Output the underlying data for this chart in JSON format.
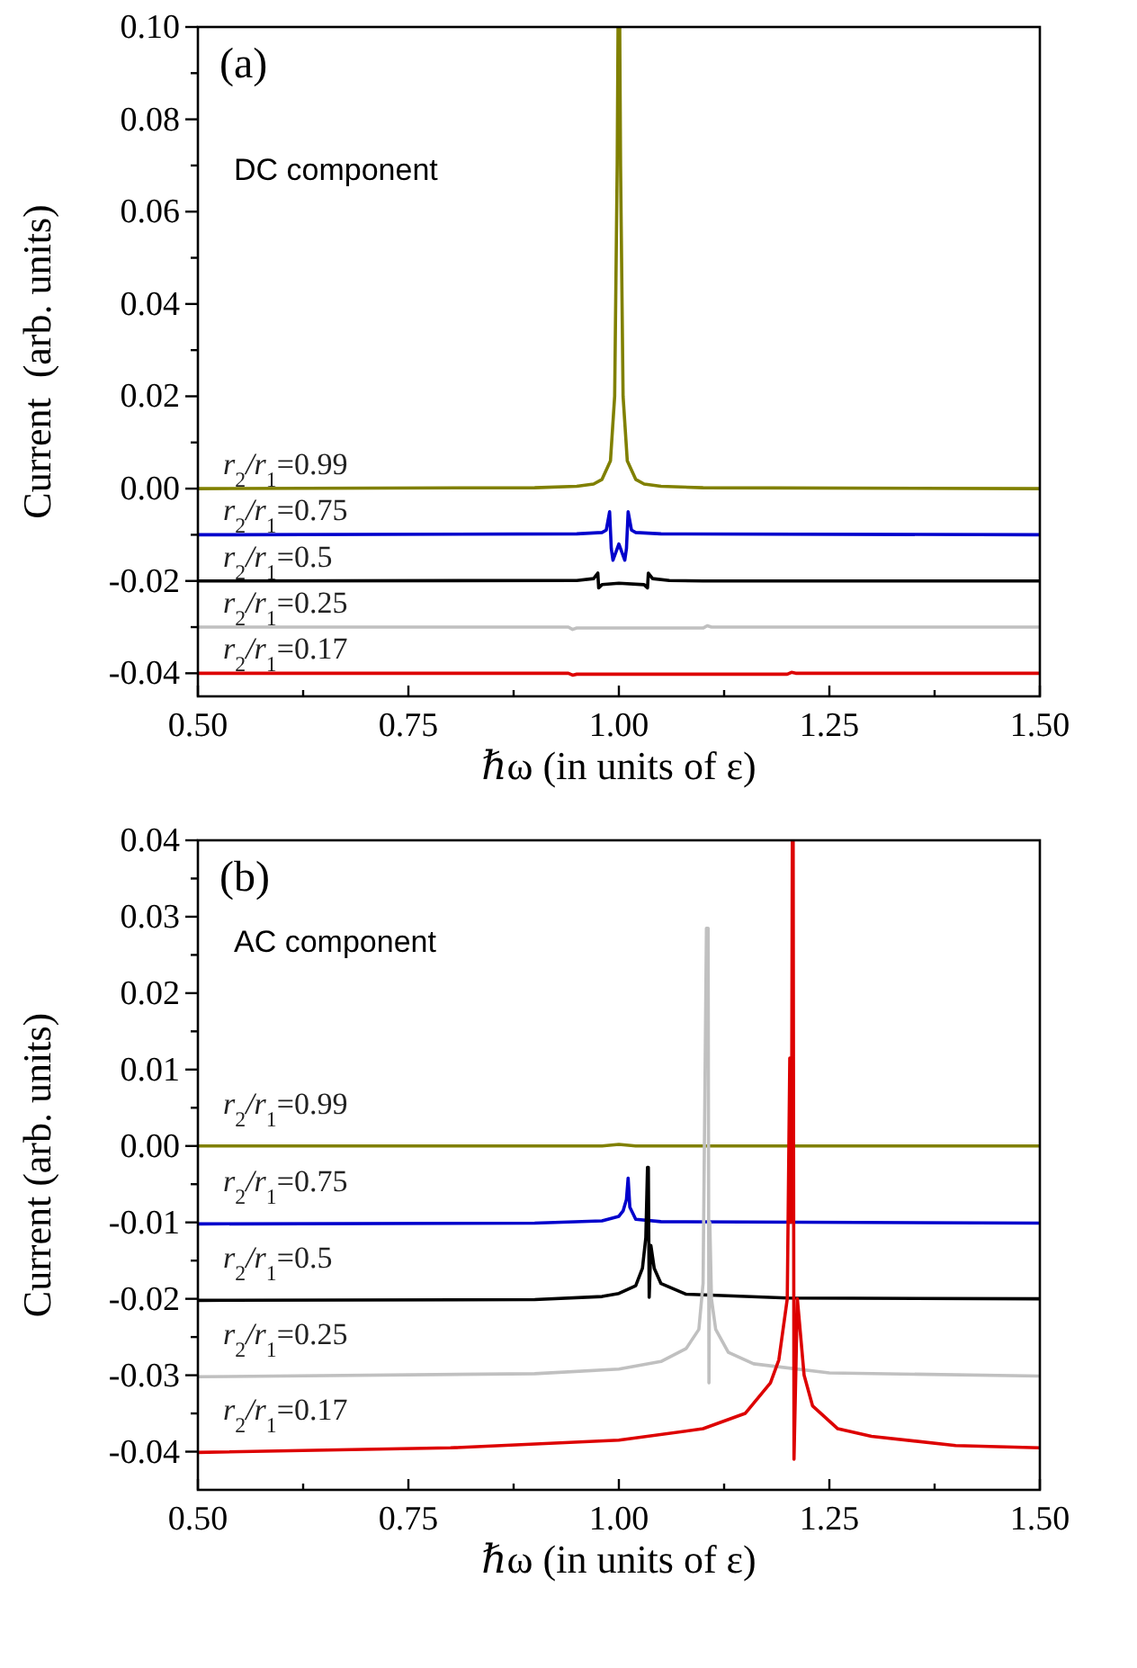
{
  "chart_data": [
    {
      "type": "line",
      "title": "(a)",
      "annotations": [
        "DC component"
      ],
      "xlabel": "ℏω (in units of ε)",
      "ylabel": "Current  (arb. units)",
      "xlim": [
        0.5,
        1.5
      ],
      "ylim": [
        -0.045,
        0.1
      ],
      "xticks": [
        {
          "value": 0.5,
          "label": "0.50"
        },
        {
          "value": 0.625,
          "label": null
        },
        {
          "value": 0.75,
          "label": "0.75"
        },
        {
          "value": 0.875,
          "label": null
        },
        {
          "value": 1.0,
          "label": "1.00"
        },
        {
          "value": 1.125,
          "label": null
        },
        {
          "value": 1.25,
          "label": "1.25"
        },
        {
          "value": 1.375,
          "label": null
        },
        {
          "value": 1.5,
          "label": "1.50"
        }
      ],
      "yticks": [
        {
          "value": -0.04,
          "label": "-0.04"
        },
        {
          "value": -0.03,
          "label": null
        },
        {
          "value": -0.02,
          "label": "-0.02"
        },
        {
          "value": -0.01,
          "label": null
        },
        {
          "value": 0,
          "label": "0.00"
        },
        {
          "value": 0.01,
          "label": null
        },
        {
          "value": 0.02,
          "label": "0.02"
        },
        {
          "value": 0.03,
          "label": null
        },
        {
          "value": 0.04,
          "label": "0.04"
        },
        {
          "value": 0.05,
          "label": null
        },
        {
          "value": 0.06,
          "label": "0.06"
        },
        {
          "value": 0.07,
          "label": null
        },
        {
          "value": 0.08,
          "label": "0.08"
        },
        {
          "value": 0.09,
          "label": null
        },
        {
          "value": 0.1,
          "label": "0.10"
        }
      ],
      "series": [
        {
          "name": "r$_{2}$/r$_{1}$=0.99",
          "color": "#808000",
          "x": [
            0.5,
            0.9,
            0.95,
            0.97,
            0.98,
            0.99,
            0.995,
            0.998,
            0.999,
            1.0,
            1.001,
            1.002,
            1.005,
            1.01,
            1.02,
            1.03,
            1.05,
            1.1,
            1.5
          ],
          "values": [
            0,
            0.0002,
            0.0005,
            0.001,
            0.002,
            0.006,
            0.02,
            0.07,
            0.1,
            0.1,
            0.1,
            0.07,
            0.02,
            0.006,
            0.002,
            0.001,
            0.0005,
            0.0002,
            0
          ]
        },
        {
          "name": "r$_{2}$/r$_{1}$=0.75",
          "color": "#0000cc",
          "x": [
            0.5,
            0.95,
            0.98,
            0.985,
            0.989,
            0.991,
            0.993,
            1.0,
            1.007,
            1.009,
            1.011,
            1.015,
            1.02,
            1.05,
            1.5
          ],
          "values": [
            -0.01,
            -0.0098,
            -0.0095,
            -0.009,
            -0.005,
            -0.013,
            -0.0155,
            -0.012,
            -0.0155,
            -0.013,
            -0.005,
            -0.009,
            -0.0095,
            -0.0098,
            -0.01
          ]
        },
        {
          "name": "r$_{2}$/r$_{1}$=0.5",
          "color": "#000000",
          "x": [
            0.5,
            0.95,
            0.97,
            0.975,
            0.976,
            0.98,
            1.0,
            1.03,
            1.034,
            1.035,
            1.04,
            1.06,
            1.1,
            1.5
          ],
          "values": [
            -0.02,
            -0.0199,
            -0.0195,
            -0.0183,
            -0.0215,
            -0.0208,
            -0.0205,
            -0.0208,
            -0.0215,
            -0.0183,
            -0.0195,
            -0.0199,
            -0.02,
            -0.02
          ]
        },
        {
          "name": "r$_{2}$/r$_{1}$=0.25",
          "color": "#c0c0c0",
          "x": [
            0.5,
            0.94,
            0.945,
            0.95,
            1.1,
            1.105,
            1.11,
            1.5
          ],
          "values": [
            -0.03,
            -0.03,
            -0.0305,
            -0.0302,
            -0.0302,
            -0.0297,
            -0.03,
            -0.03
          ]
        },
        {
          "name": "r$_{2}$/r$_{1}$=0.17",
          "color": "#dd0000",
          "x": [
            0.5,
            0.94,
            0.945,
            0.95,
            1.2,
            1.205,
            1.21,
            1.5
          ],
          "values": [
            -0.04,
            -0.04,
            -0.0404,
            -0.0402,
            -0.0402,
            -0.0398,
            -0.04,
            -0.04
          ]
        }
      ]
    },
    {
      "type": "line",
      "title": "(b)",
      "annotations": [
        "AC component"
      ],
      "xlabel": "ℏω (in units of ε)",
      "ylabel": "Current (arb. units)",
      "xlim": [
        0.5,
        1.5
      ],
      "ylim": [
        -0.045,
        0.04
      ],
      "xticks": [
        {
          "value": 0.5,
          "label": "0.50"
        },
        {
          "value": 0.625,
          "label": null
        },
        {
          "value": 0.75,
          "label": "0.75"
        },
        {
          "value": 0.875,
          "label": null
        },
        {
          "value": 1.0,
          "label": "1.00"
        },
        {
          "value": 1.125,
          "label": null
        },
        {
          "value": 1.25,
          "label": "1.25"
        },
        {
          "value": 1.375,
          "label": null
        },
        {
          "value": 1.5,
          "label": "1.50"
        }
      ],
      "yticks": [
        {
          "value": -0.04,
          "label": "-0.04"
        },
        {
          "value": -0.035,
          "label": null
        },
        {
          "value": -0.03,
          "label": "-0.03"
        },
        {
          "value": -0.025,
          "label": null
        },
        {
          "value": -0.02,
          "label": "-0.02"
        },
        {
          "value": -0.015,
          "label": null
        },
        {
          "value": -0.01,
          "label": "-0.01"
        },
        {
          "value": -0.005,
          "label": null
        },
        {
          "value": 0,
          "label": "0.00"
        },
        {
          "value": 0.005,
          "label": null
        },
        {
          "value": 0.01,
          "label": "0.01"
        },
        {
          "value": 0.015,
          "label": null
        },
        {
          "value": 0.02,
          "label": "0.02"
        },
        {
          "value": 0.025,
          "label": null
        },
        {
          "value": 0.03,
          "label": "0.03"
        },
        {
          "value": 0.035,
          "label": null
        },
        {
          "value": 0.04,
          "label": "0.04"
        }
      ],
      "series": [
        {
          "name": "r$_{2}$/r$_{1}$=0.99",
          "color": "#808000",
          "x": [
            0.5,
            0.98,
            1.0,
            1.02,
            1.5
          ],
          "values": [
            0,
            0,
            0.0002,
            0,
            0
          ]
        },
        {
          "name": "r$_{2}$/r$_{1}$=0.75",
          "color": "#0000cc",
          "x": [
            0.5,
            0.9,
            0.98,
            1.0,
            1.005,
            1.009,
            1.011,
            1.013,
            1.02,
            1.05,
            1.5
          ],
          "values": [
            -0.0102,
            -0.0101,
            -0.0098,
            -0.0092,
            -0.0085,
            -0.007,
            -0.0042,
            -0.008,
            -0.0096,
            -0.0099,
            -0.0101
          ]
        },
        {
          "name": "r$_{2}$/r$_{1}$=0.5",
          "color": "#000000",
          "x": [
            0.5,
            0.9,
            0.98,
            1.0,
            1.02,
            1.028,
            1.032,
            1.034,
            1.035,
            1.036,
            1.038,
            1.042,
            1.05,
            1.08,
            1.2,
            1.5
          ],
          "values": [
            -0.0202,
            -0.0201,
            -0.0197,
            -0.0193,
            -0.0183,
            -0.016,
            -0.012,
            -0.0028,
            -0.0028,
            -0.0198,
            -0.013,
            -0.016,
            -0.018,
            -0.0194,
            -0.0199,
            -0.02
          ]
        },
        {
          "name": "r$_{2}$/r$_{1}$=0.25",
          "color": "#c0c0c0",
          "x": [
            0.5,
            0.9,
            1.0,
            1.05,
            1.08,
            1.095,
            1.1,
            1.104,
            1.106,
            1.107,
            1.108,
            1.11,
            1.115,
            1.13,
            1.16,
            1.25,
            1.5
          ],
          "values": [
            -0.0302,
            -0.0298,
            -0.0292,
            -0.0282,
            -0.0265,
            -0.024,
            -0.018,
            0.0285,
            0.0285,
            -0.031,
            -0.01,
            -0.02,
            -0.024,
            -0.027,
            -0.0285,
            -0.0297,
            -0.0301
          ]
        },
        {
          "name": "r$_{2}$/r$_{1}$=0.17",
          "color": "#dd0000",
          "x": [
            0.5,
            0.8,
            1.0,
            1.1,
            1.15,
            1.18,
            1.19,
            1.2,
            1.203,
            1.204,
            1.205,
            1.206,
            1.207,
            1.208,
            1.212,
            1.22,
            1.23,
            1.26,
            1.3,
            1.4,
            1.5
          ],
          "values": [
            -0.0401,
            -0.0395,
            -0.0385,
            -0.037,
            -0.035,
            -0.031,
            -0.028,
            -0.02,
            0.0115,
            -0.01,
            -0.005,
            0.04,
            0.04,
            -0.041,
            -0.02,
            -0.03,
            -0.034,
            -0.037,
            -0.038,
            -0.0392,
            -0.0395
          ]
        }
      ]
    }
  ]
}
